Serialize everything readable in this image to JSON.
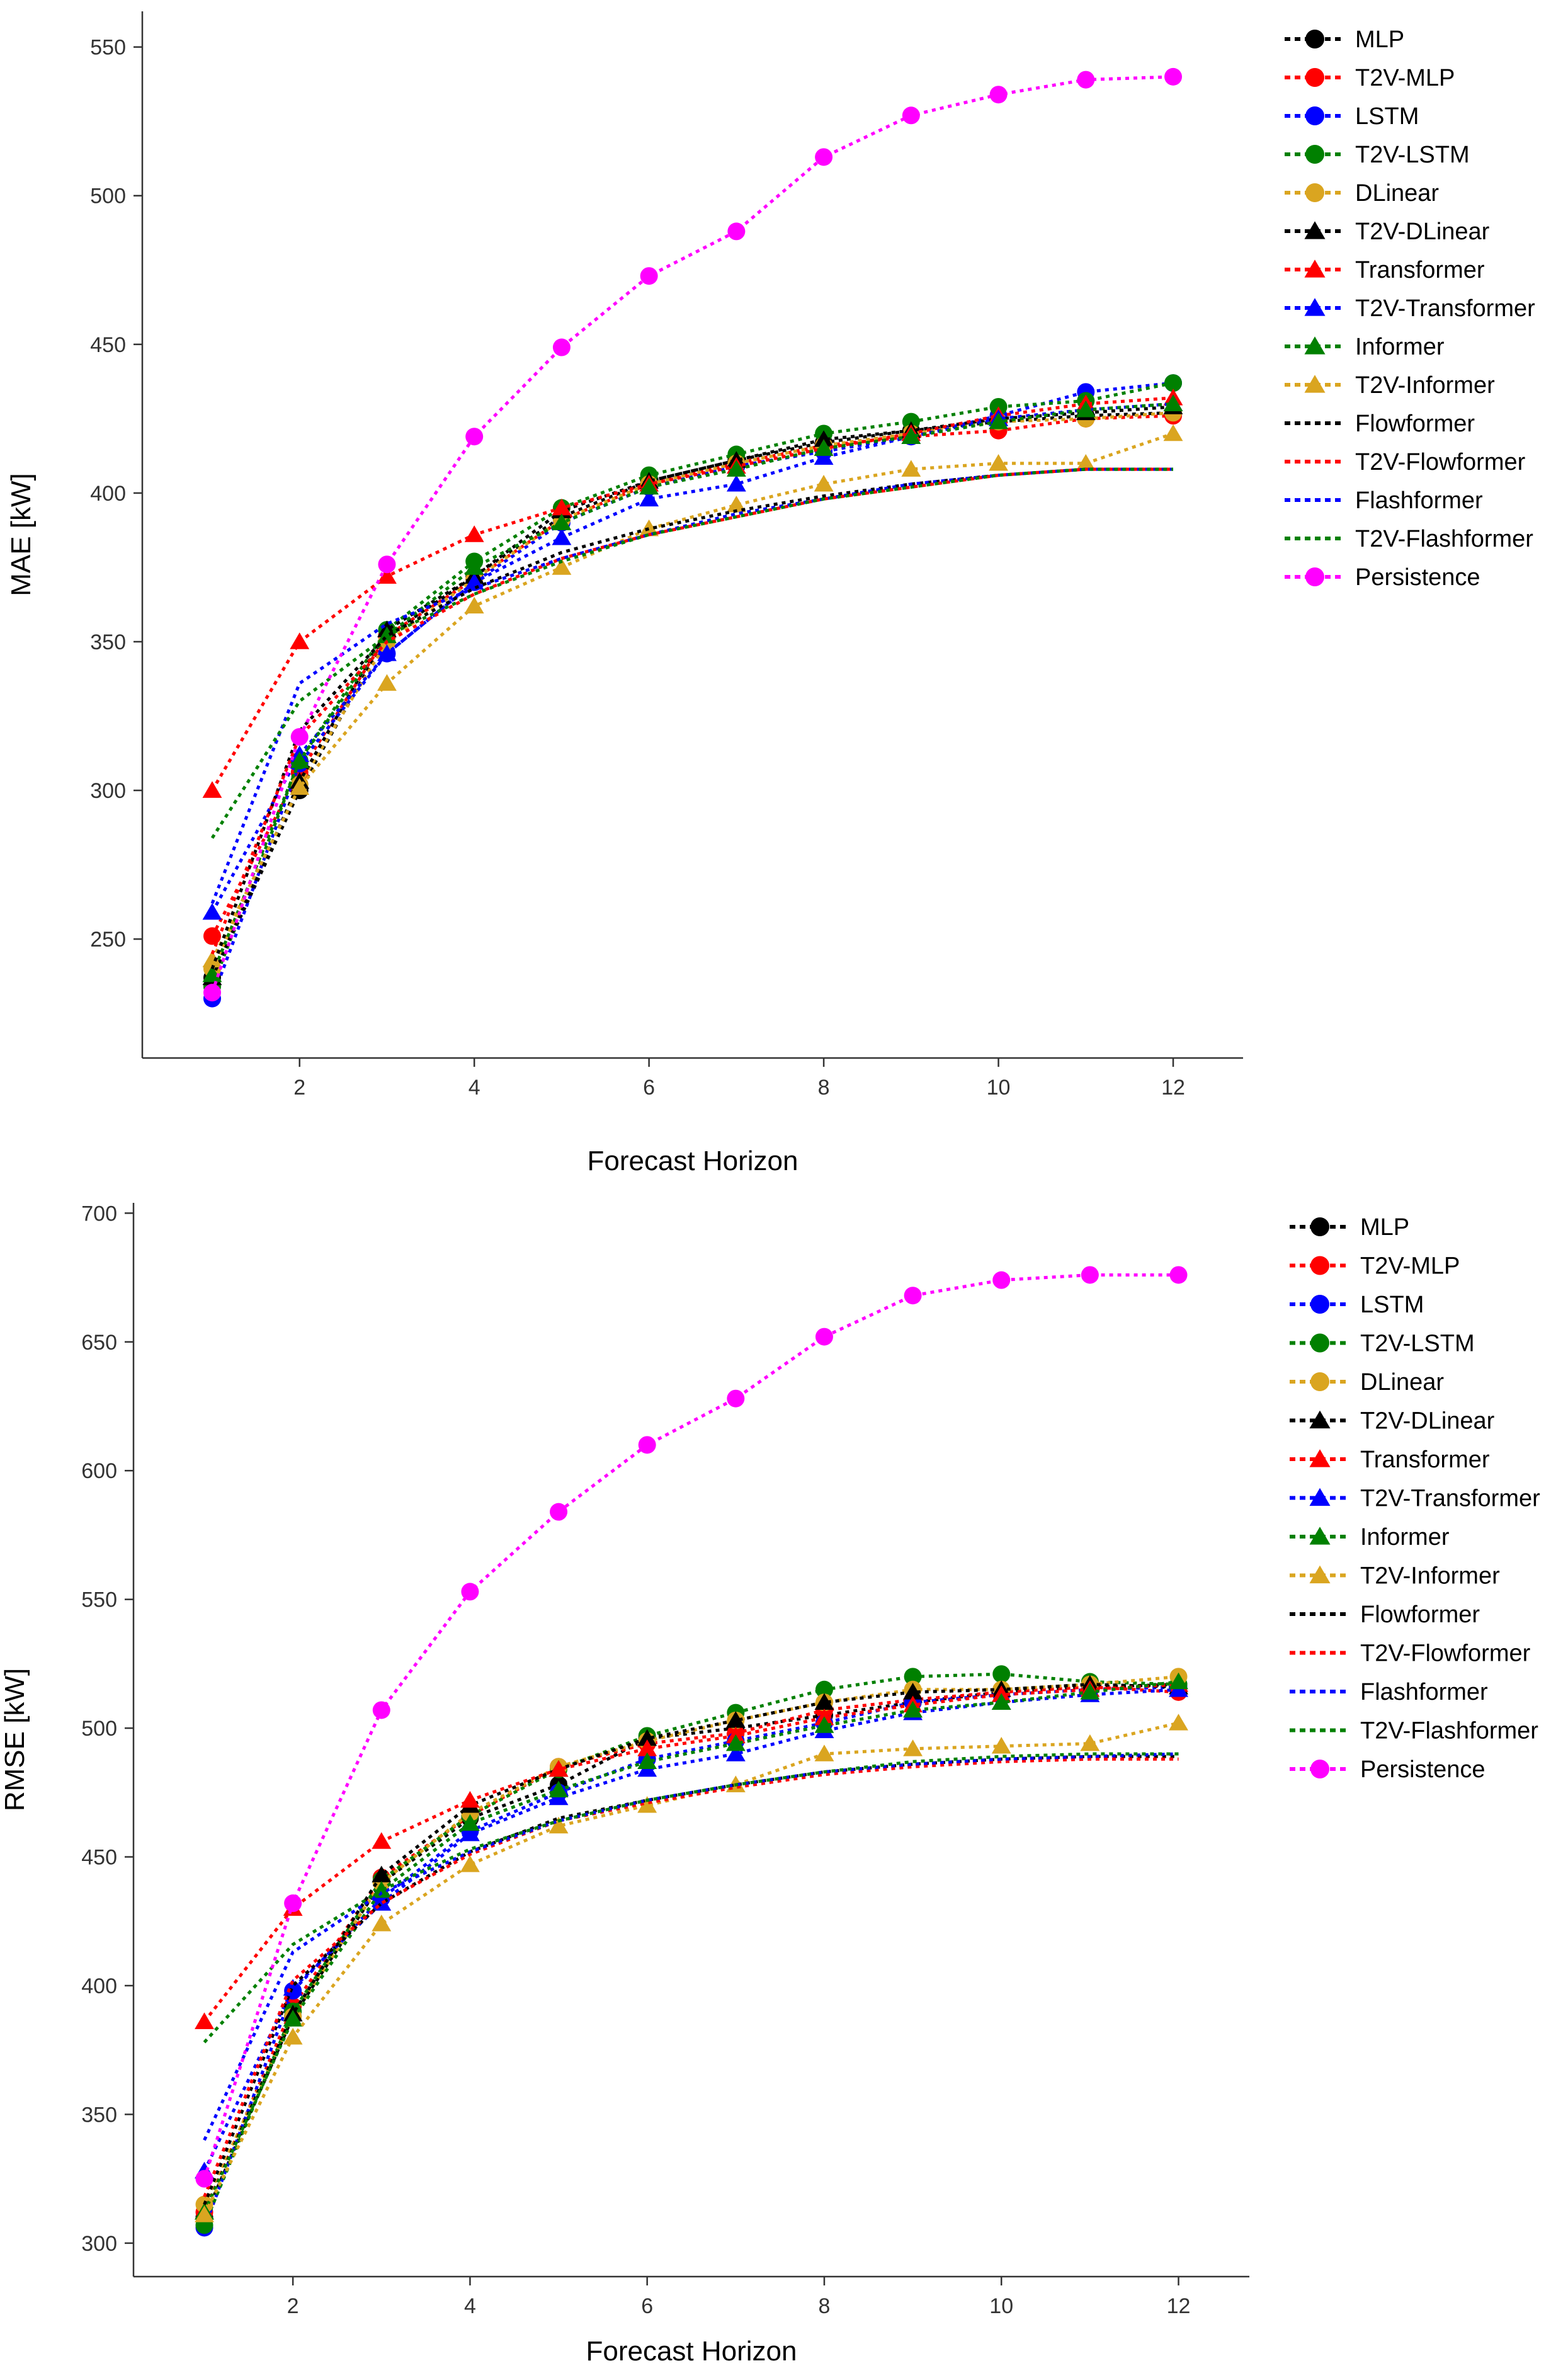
{
  "chart_data": [
    {
      "type": "line",
      "name": "mae",
      "title": "",
      "xlabel": "Forecast Horizon",
      "ylabel": "MAE [kW]",
      "xlim": [
        0.2,
        12.8
      ],
      "ylim": [
        210,
        562
      ],
      "xticks": [
        2,
        4,
        6,
        8,
        10,
        12
      ],
      "yticks": [
        250,
        300,
        350,
        400,
        450,
        500,
        550
      ],
      "grid": false,
      "legend_position": "right",
      "x": [
        1,
        2,
        3,
        4,
        5,
        6,
        7,
        8,
        9,
        10,
        11,
        12
      ],
      "series": [
        {
          "name": "MLP",
          "color": "#000000",
          "marker": "circle",
          "line": true,
          "values": [
            237,
            300,
            352,
            372,
            392,
            404,
            411,
            417,
            421,
            424,
            426,
            427
          ]
        },
        {
          "name": "T2V-MLP",
          "color": "#ff0000",
          "marker": "circle",
          "line": true,
          "values": [
            251,
            306,
            352,
            371,
            391,
            403,
            410,
            416,
            419,
            421,
            425,
            426
          ]
        },
        {
          "name": "LSTM",
          "color": "#0000ff",
          "marker": "circle",
          "line": true,
          "values": [
            230,
            309,
            346,
            370,
            390,
            402,
            409,
            414,
            419,
            426,
            434,
            437
          ]
        },
        {
          "name": "T2V-LSTM",
          "color": "#008000",
          "marker": "circle",
          "line": true,
          "values": [
            234,
            310,
            354,
            377,
            395,
            406,
            413,
            420,
            424,
            429,
            431,
            437
          ]
        },
        {
          "name": "DLinear",
          "color": "#daa520",
          "marker": "circle",
          "line": true,
          "values": [
            240,
            302,
            350,
            371,
            391,
            403,
            410,
            416,
            420,
            424,
            425,
            427
          ]
        },
        {
          "name": "T2V-DLinear",
          "color": "#000000",
          "marker": "triangle",
          "line": true,
          "values": [
            237,
            303,
            354,
            372,
            394,
            404,
            411,
            418,
            421,
            425,
            427,
            429
          ]
        },
        {
          "name": "Transformer",
          "color": "#ff0000",
          "marker": "triangle",
          "line": true,
          "values": [
            300,
            350,
            372,
            386,
            395,
            403,
            409,
            415,
            420,
            426,
            430,
            432
          ]
        },
        {
          "name": "T2V-Transformer",
          "color": "#0000ff",
          "marker": "triangle",
          "line": true,
          "values": [
            259,
            312,
            346,
            370,
            385,
            398,
            403,
            412,
            419,
            425,
            428,
            430
          ]
        },
        {
          "name": "Informer",
          "color": "#008000",
          "marker": "triangle",
          "line": true,
          "values": [
            238,
            310,
            352,
            375,
            390,
            402,
            408,
            415,
            419,
            424,
            428,
            430
          ]
        },
        {
          "name": "T2V-Informer",
          "color": "#daa520",
          "marker": "triangle",
          "line": true,
          "values": [
            243,
            301,
            336,
            362,
            375,
            388,
            396,
            403,
            408,
            410,
            410,
            420
          ]
        },
        {
          "name": "Flowformer",
          "color": "#000000",
          "marker": "none",
          "line": true,
          "values": [
            240,
            320,
            352,
            368,
            380,
            388,
            394,
            399,
            403,
            406,
            408,
            408
          ]
        },
        {
          "name": "T2V-Flowformer",
          "color": "#ff0000",
          "marker": "none",
          "line": true,
          "values": [
            245,
            318,
            350,
            366,
            378,
            386,
            392,
            398,
            402,
            406,
            408,
            408
          ]
        },
        {
          "name": "Flashformer",
          "color": "#0000ff",
          "marker": "none",
          "line": true,
          "values": [
            262,
            336,
            356,
            368,
            378,
            386,
            393,
            398,
            403,
            406,
            408,
            408
          ]
        },
        {
          "name": "T2V-Flashformer",
          "color": "#008000",
          "marker": "none",
          "line": true,
          "values": [
            284,
            330,
            352,
            366,
            377,
            386,
            392,
            398,
            402,
            406,
            408,
            408
          ]
        },
        {
          "name": "Persistence",
          "color": "#ff00ff",
          "marker": "circle",
          "line": true,
          "values": [
            232,
            318,
            376,
            419,
            449,
            473,
            488,
            513,
            527,
            534,
            539,
            540
          ]
        }
      ]
    },
    {
      "type": "line",
      "name": "rmse",
      "title": "",
      "xlabel": "Forecast Horizon",
      "ylabel": "RMSE [kW]",
      "xlim": [
        0.2,
        12.8
      ],
      "ylim": [
        287,
        704
      ],
      "xticks": [
        2,
        4,
        6,
        8,
        10,
        12
      ],
      "yticks": [
        300,
        350,
        400,
        450,
        500,
        550,
        600,
        650,
        700
      ],
      "grid": false,
      "legend_position": "right",
      "x": [
        1,
        2,
        3,
        4,
        5,
        6,
        7,
        8,
        9,
        10,
        11,
        12
      ],
      "series": [
        {
          "name": "MLP",
          "color": "#000000",
          "marker": "circle",
          "line": true,
          "values": [
            310,
            388,
            440,
            465,
            478,
            496,
            500,
            505,
            510,
            514,
            516,
            517
          ]
        },
        {
          "name": "T2V-MLP",
          "color": "#ff0000",
          "marker": "circle",
          "line": true,
          "values": [
            312,
            392,
            442,
            466,
            485,
            494,
            498,
            507,
            511,
            514,
            516,
            514
          ]
        },
        {
          "name": "LSTM",
          "color": "#0000ff",
          "marker": "circle",
          "line": true,
          "values": [
            306,
            398,
            434,
            460,
            475,
            488,
            495,
            502,
            510,
            513,
            515,
            516
          ]
        },
        {
          "name": "T2V-LSTM",
          "color": "#008000",
          "marker": "circle",
          "line": true,
          "values": [
            307,
            390,
            441,
            466,
            484,
            497,
            506,
            515,
            520,
            521,
            518,
            517
          ]
        },
        {
          "name": "DLinear",
          "color": "#daa520",
          "marker": "circle",
          "line": true,
          "values": [
            315,
            388,
            440,
            467,
            485,
            495,
            503,
            510,
            515,
            515,
            517,
            520
          ]
        },
        {
          "name": "T2V-DLinear",
          "color": "#000000",
          "marker": "triangle",
          "line": true,
          "values": [
            312,
            389,
            443,
            470,
            484,
            496,
            503,
            510,
            514,
            515,
            517,
            516
          ]
        },
        {
          "name": "Transformer",
          "color": "#ff0000",
          "marker": "triangle",
          "line": true,
          "values": [
            386,
            430,
            456,
            472,
            484,
            492,
            497,
            504,
            509,
            513,
            515,
            517
          ]
        },
        {
          "name": "T2V-Transformer",
          "color": "#0000ff",
          "marker": "triangle",
          "line": true,
          "values": [
            328,
            399,
            432,
            459,
            473,
            484,
            490,
            499,
            506,
            510,
            513,
            515
          ]
        },
        {
          "name": "Informer",
          "color": "#008000",
          "marker": "triangle",
          "line": true,
          "values": [
            312,
            387,
            437,
            463,
            476,
            487,
            494,
            501,
            507,
            510,
            514,
            518
          ]
        },
        {
          "name": "T2V-Informer",
          "color": "#daa520",
          "marker": "triangle",
          "line": true,
          "values": [
            311,
            380,
            424,
            447,
            462,
            470,
            478,
            490,
            492,
            493,
            494,
            502
          ]
        },
        {
          "name": "Flowformer",
          "color": "#000000",
          "marker": "none",
          "line": true,
          "values": [
            315,
            400,
            432,
            452,
            465,
            472,
            478,
            483,
            486,
            488,
            489,
            489
          ]
        },
        {
          "name": "T2V-Flowformer",
          "color": "#ff0000",
          "marker": "none",
          "line": true,
          "values": [
            318,
            402,
            432,
            451,
            464,
            471,
            477,
            482,
            485,
            487,
            488,
            488
          ]
        },
        {
          "name": "Flashformer",
          "color": "#0000ff",
          "marker": "none",
          "line": true,
          "values": [
            340,
            413,
            436,
            452,
            464,
            472,
            478,
            483,
            486,
            488,
            489,
            490
          ]
        },
        {
          "name": "T2V-Flashformer",
          "color": "#008000",
          "marker": "none",
          "line": true,
          "values": [
            378,
            416,
            437,
            453,
            464,
            472,
            478,
            483,
            487,
            489,
            490,
            490
          ]
        },
        {
          "name": "Persistence",
          "color": "#ff00ff",
          "marker": "circle",
          "line": true,
          "values": [
            325,
            432,
            507,
            553,
            584,
            610,
            628,
            652,
            668,
            674,
            676,
            676
          ]
        }
      ]
    }
  ]
}
